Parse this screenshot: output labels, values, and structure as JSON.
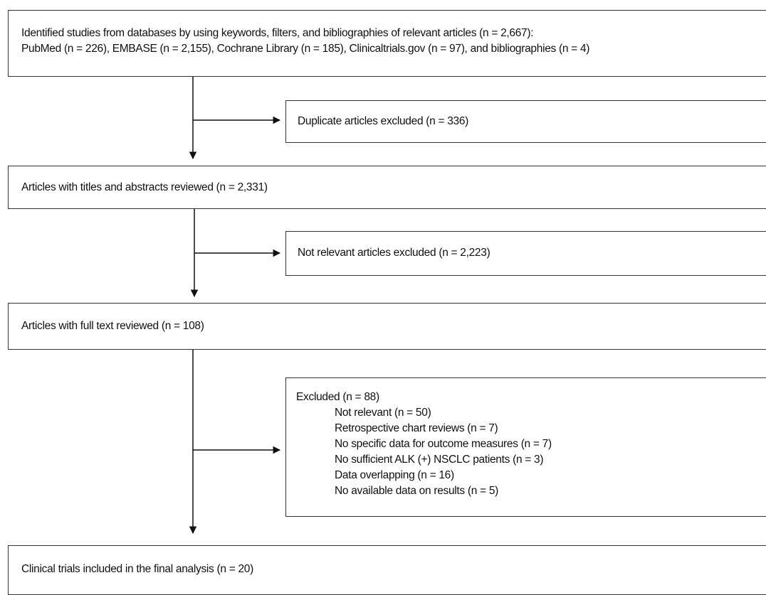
{
  "flow": {
    "identified": {
      "line1": "Identified studies from databases by using keywords, filters, and bibliographies of relevant articles (n = 2,667):",
      "line2": "PubMed (n = 226), EMBASE  (n = 2,155), Cochrane Library (n = 185), Clinicaltrials.gov (n = 97), and bibliographies (n = 4)"
    },
    "duplicates_excluded": "Duplicate articles excluded (n = 336)",
    "screened": "Articles with titles and abstracts reviewed (n = 2,331)",
    "not_relevant_excluded": "Not relevant articles excluded (n = 2,223)",
    "full_text": "Articles with full text  reviewed (n = 108)",
    "excluded": {
      "title": "Excluded (n = 88)",
      "reasons": [
        "Not relevant (n = 50)",
        "Retrospective chart reviews (n = 7)",
        "No specific data for outcome measures (n = 7)",
        "No sufficient ALK (+) NSCLC patients (n = 3)",
        "Data overlapping (n = 16)",
        "No available data on results (n = 5)"
      ]
    },
    "included": "Clinical trials included in the final analysis (n = 20)"
  }
}
